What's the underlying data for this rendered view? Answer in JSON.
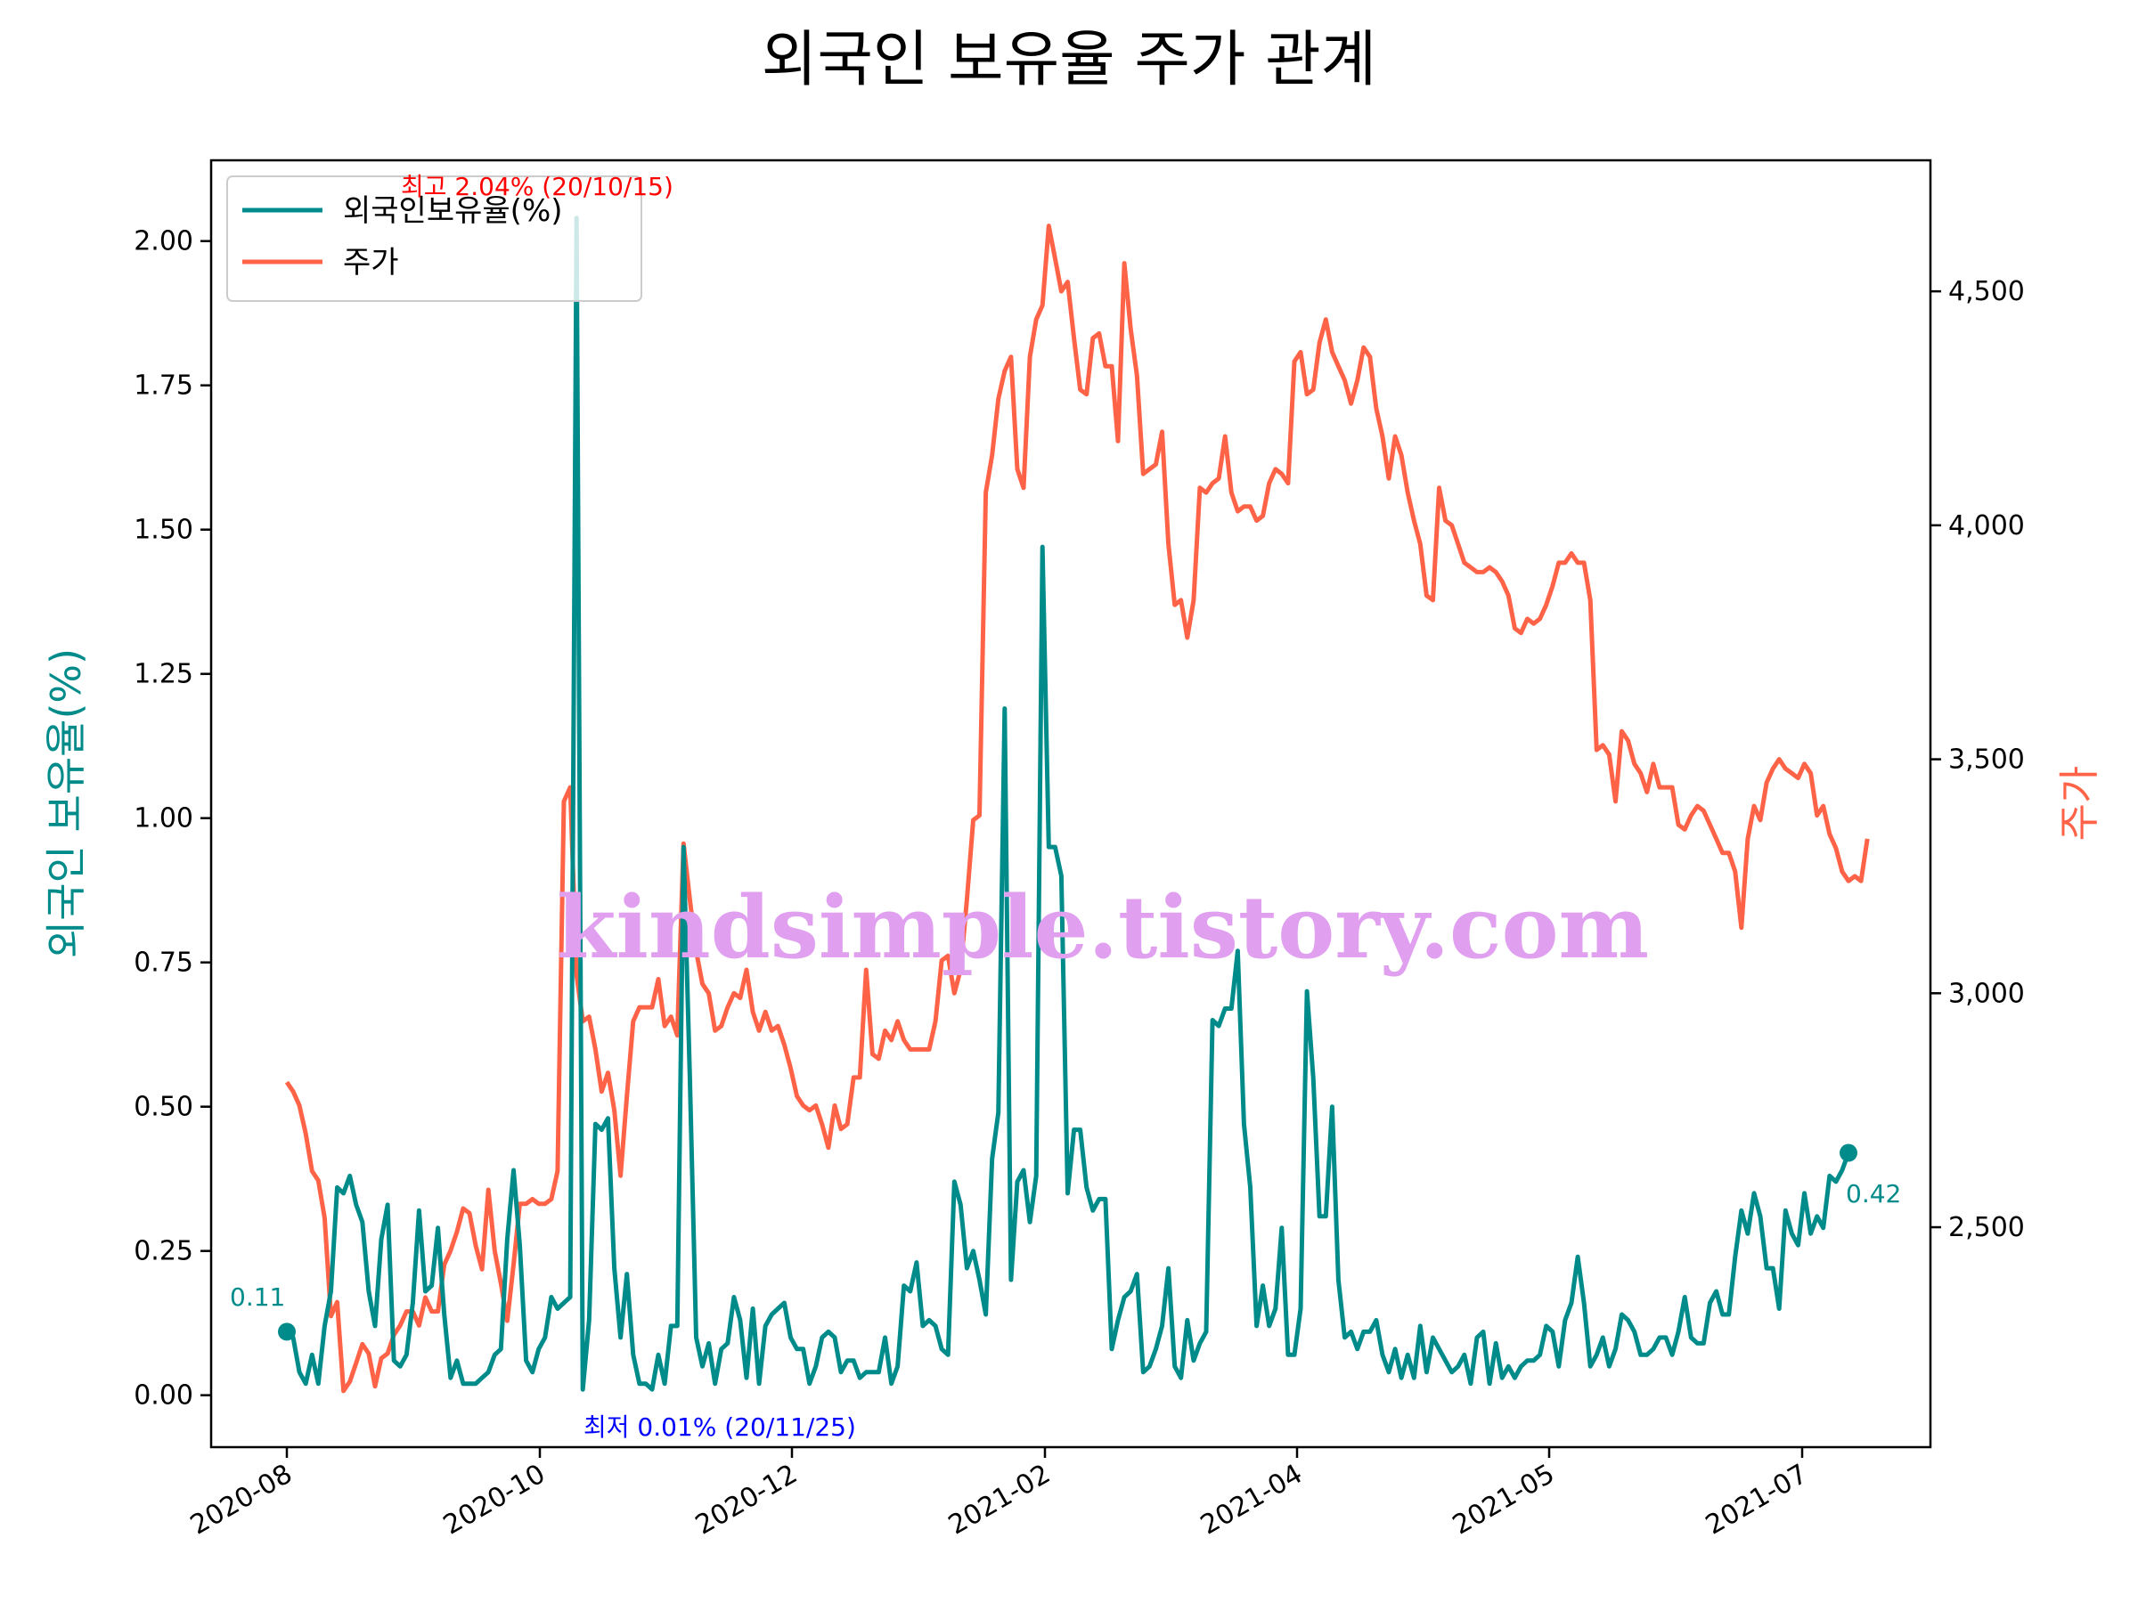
{
  "chart_data": {
    "type": "line",
    "title": "외국인 보유율 주가 관계",
    "y_left": {
      "label": "외국인 보유율(%)",
      "ylim": [
        -0.09,
        2.14
      ],
      "ticks": [
        "0.00",
        "0.25",
        "0.50",
        "0.75",
        "1.00",
        "1.25",
        "1.50",
        "1.75",
        "2.00"
      ],
      "color": "#008b8b"
    },
    "y_right": {
      "label": "주가",
      "ylim": [
        2030,
        4780
      ],
      "ticks": [
        "2,500",
        "3,000",
        "3,500",
        "4,000",
        "4,500"
      ],
      "color": "#ff6347"
    },
    "x_ticks": [
      "2020-08",
      "2020-10",
      "2020-12",
      "2021-02",
      "2021-04",
      "2021-05",
      "2021-07"
    ],
    "legend": {
      "placement": "upper-left",
      "entries": [
        "외국인보유율(%)",
        "주가"
      ]
    },
    "annotations": {
      "max": "최고 2.04% (20/10/15)",
      "min": "최저 0.01% (20/11/25)",
      "start": "0.11",
      "end": "0.42"
    },
    "watermark": "kindsimple.tistory.com",
    "series": [
      {
        "name": "외국인보유율(%)",
        "axis": "left",
        "color": "#008b8b",
        "values": [
          0.11,
          0.1,
          0.04,
          0.02,
          0.07,
          0.02,
          0.12,
          0.18,
          0.36,
          0.35,
          0.38,
          0.33,
          0.3,
          0.18,
          0.12,
          0.27,
          0.33,
          0.06,
          0.05,
          0.07,
          0.16,
          0.32,
          0.18,
          0.19,
          0.29,
          0.14,
          0.03,
          0.06,
          0.02,
          0.02,
          0.02,
          0.03,
          0.04,
          0.07,
          0.08,
          0.27,
          0.39,
          0.26,
          0.06,
          0.04,
          0.08,
          0.1,
          0.17,
          0.15,
          0.16,
          0.17,
          2.04,
          0.01,
          0.13,
          0.47,
          0.46,
          0.48,
          0.22,
          0.1,
          0.21,
          0.07,
          0.02,
          0.02,
          0.01,
          0.07,
          0.02,
          0.12,
          0.12,
          0.95,
          0.55,
          0.1,
          0.05,
          0.09,
          0.02,
          0.08,
          0.09,
          0.17,
          0.13,
          0.03,
          0.15,
          0.02,
          0.12,
          0.14,
          0.15,
          0.16,
          0.1,
          0.08,
          0.08,
          0.02,
          0.05,
          0.1,
          0.11,
          0.1,
          0.04,
          0.06,
          0.06,
          0.03,
          0.04,
          0.04,
          0.04,
          0.1,
          0.02,
          0.05,
          0.19,
          0.18,
          0.23,
          0.12,
          0.13,
          0.12,
          0.08,
          0.07,
          0.37,
          0.33,
          0.22,
          0.25,
          0.2,
          0.14,
          0.41,
          0.49,
          1.19,
          0.2,
          0.37,
          0.39,
          0.3,
          0.38,
          1.47,
          0.95,
          0.95,
          0.9,
          0.35,
          0.46,
          0.46,
          0.36,
          0.32,
          0.34,
          0.34,
          0.08,
          0.13,
          0.17,
          0.18,
          0.21,
          0.04,
          0.05,
          0.08,
          0.12,
          0.22,
          0.05,
          0.03,
          0.13,
          0.06,
          0.09,
          0.11,
          0.65,
          0.64,
          0.67,
          0.67,
          0.77,
          0.47,
          0.36,
          0.12,
          0.19,
          0.12,
          0.15,
          0.29,
          0.07,
          0.07,
          0.15,
          0.7,
          0.55,
          0.31,
          0.31,
          0.5,
          0.2,
          0.1,
          0.11,
          0.08,
          0.11,
          0.11,
          0.13,
          0.07,
          0.04,
          0.08,
          0.03,
          0.07,
          0.03,
          0.12,
          0.04,
          0.1,
          0.08,
          0.06,
          0.04,
          0.05,
          0.07,
          0.02,
          0.1,
          0.11,
          0.02,
          0.09,
          0.03,
          0.05,
          0.03,
          0.05,
          0.06,
          0.06,
          0.07,
          0.12,
          0.11,
          0.05,
          0.13,
          0.16,
          0.24,
          0.16,
          0.05,
          0.07,
          0.1,
          0.05,
          0.08,
          0.14,
          0.13,
          0.11,
          0.07,
          0.07,
          0.08,
          0.1,
          0.1,
          0.07,
          0.11,
          0.17,
          0.1,
          0.09,
          0.09,
          0.16,
          0.18,
          0.14,
          0.14,
          0.24,
          0.32,
          0.28,
          0.35,
          0.31,
          0.22,
          0.22,
          0.15,
          0.32,
          0.28,
          0.26,
          0.35,
          0.28,
          0.31,
          0.29,
          0.38,
          0.37,
          0.39,
          0.42
        ]
      },
      {
        "name": "주가",
        "axis": "right",
        "color": "#ff6347",
        "values": [
          2810,
          2790,
          2760,
          2700,
          2620,
          2600,
          2520,
          2310,
          2340,
          2150,
          2170,
          2210,
          2250,
          2230,
          2160,
          2220,
          2230,
          2270,
          2290,
          2320,
          2320,
          2290,
          2350,
          2320,
          2320,
          2420,
          2450,
          2490,
          2540,
          2530,
          2460,
          2410,
          2580,
          2450,
          2380,
          2300,
          2420,
          2550,
          2550,
          2560,
          2550,
          2550,
          2560,
          2620,
          3410,
          3440,
          3040,
          2940,
          2950,
          2880,
          2790,
          2830,
          2750,
          2610,
          2780,
          2940,
          2970,
          2970,
          2970,
          3030,
          2930,
          2950,
          2910,
          3320,
          3200,
          3090,
          3020,
          3000,
          2920,
          2930,
          2970,
          3000,
          2990,
          3050,
          2960,
          2920,
          2960,
          2920,
          2930,
          2890,
          2840,
          2780,
          2760,
          2750,
          2760,
          2720,
          2670,
          2760,
          2710,
          2720,
          2820,
          2820,
          3050,
          2870,
          2860,
          2920,
          2900,
          2940,
          2900,
          2880,
          2880,
          2880,
          2880,
          2940,
          3070,
          3080,
          3000,
          3050,
          3200,
          3370,
          3380,
          4070,
          4150,
          4270,
          4330,
          4360,
          4120,
          4080,
          4360,
          4440,
          4470,
          4640,
          4570,
          4500,
          4520,
          4400,
          4290,
          4280,
          4400,
          4410,
          4340,
          4340,
          4180,
          4560,
          4420,
          4320,
          4110,
          4120,
          4130,
          4200,
          3960,
          3830,
          3840,
          3760,
          3840,
          4080,
          4070,
          4090,
          4100,
          4190,
          4070,
          4030,
          4040,
          4040,
          4010,
          4020,
          4090,
          4120,
          4110,
          4090,
          4350,
          4370,
          4280,
          4290,
          4390,
          4440,
          4370,
          4340,
          4310,
          4260,
          4310,
          4380,
          4360,
          4250,
          4190,
          4100,
          4190,
          4150,
          4070,
          4010,
          3960,
          3850,
          3840,
          4080,
          4010,
          4000,
          3960,
          3920,
          3910,
          3900,
          3900,
          3910,
          3900,
          3880,
          3850,
          3780,
          3770,
          3800,
          3790,
          3800,
          3830,
          3870,
          3920,
          3920,
          3940,
          3920,
          3920,
          3840,
          3520,
          3530,
          3510,
          3410,
          3560,
          3540,
          3490,
          3470,
          3430,
          3490,
          3440,
          3440,
          3440,
          3360,
          3350,
          3380,
          3400,
          3390,
          3360,
          3330,
          3300,
          3300,
          3260,
          3140,
          3330,
          3400,
          3370,
          3450,
          3480,
          3500,
          3480,
          3470,
          3460,
          3490,
          3470,
          3380,
          3400,
          3340,
          3310,
          3260,
          3240,
          3250,
          3240,
          3330
        ]
      }
    ]
  }
}
